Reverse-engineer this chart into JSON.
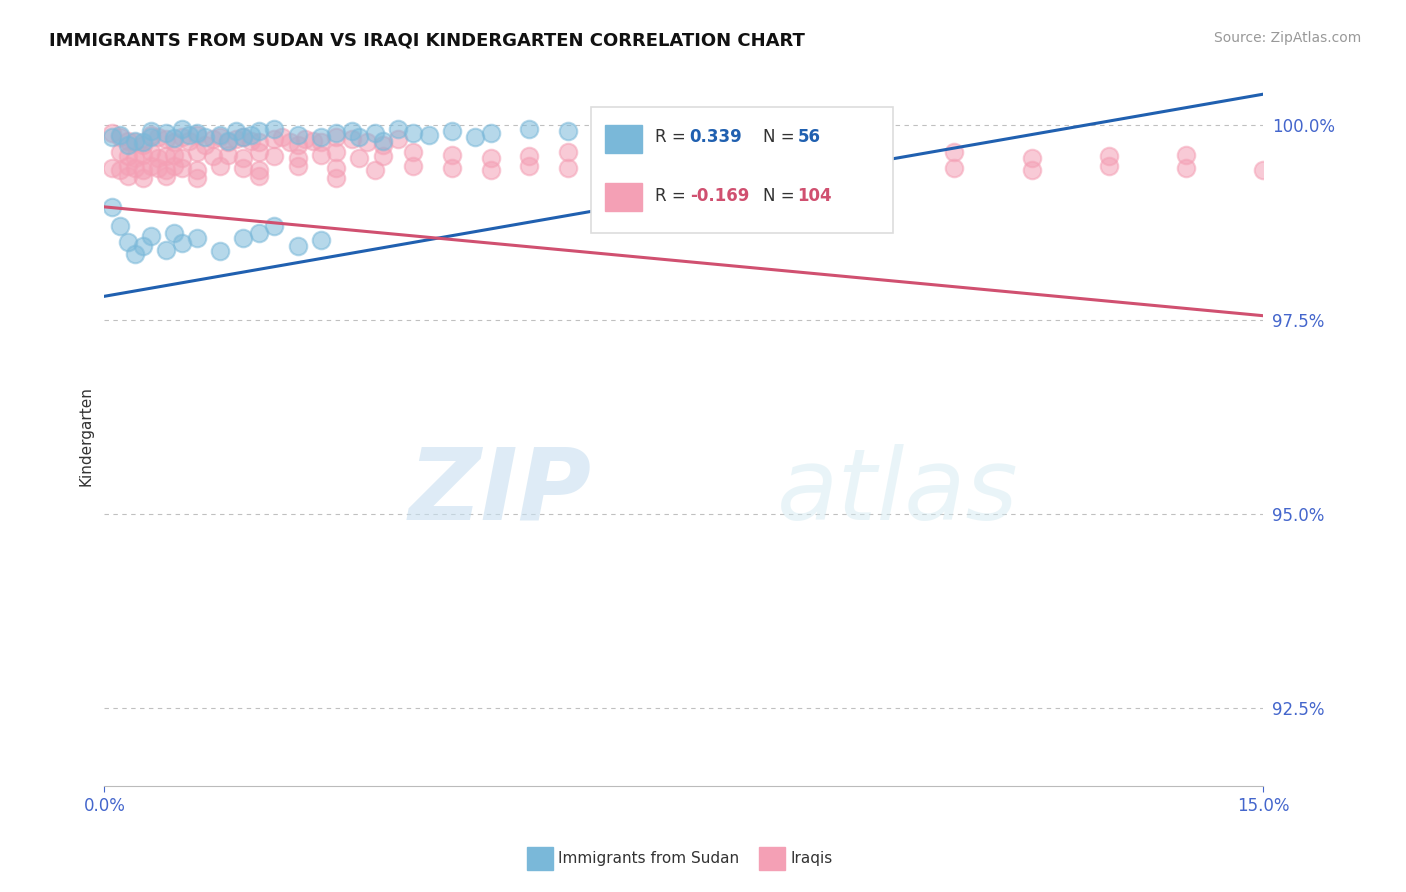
{
  "title": "IMMIGRANTS FROM SUDAN VS IRAQI KINDERGARTEN CORRELATION CHART",
  "source": "Source: ZipAtlas.com",
  "ylabel": "Kindergarten",
  "xlim": [
    0.0,
    0.15
  ],
  "ylim": [
    0.915,
    1.005
  ],
  "yticks": [
    0.925,
    0.95,
    0.975,
    1.0
  ],
  "ytick_labels": [
    "92.5%",
    "95.0%",
    "97.5%",
    "100.0%"
  ],
  "xticks": [
    0.0,
    0.15
  ],
  "xtick_labels": [
    "0.0%",
    "15.0%"
  ],
  "legend1_r": "0.339",
  "legend1_n": "56",
  "legend2_r": "-0.169",
  "legend2_n": "104",
  "color_blue": "#7ab8d9",
  "color_pink": "#f4a0b5",
  "line_color_blue": "#2060b0",
  "line_color_pink": "#d05070",
  "background_color": "#ffffff",
  "watermark_zip": "ZIP",
  "watermark_atlas": "atlas",
  "tick_color": "#4466cc",
  "blue_trend_x": [
    0.0,
    0.15
  ],
  "blue_trend_y": [
    0.978,
    1.004
  ],
  "pink_trend_x": [
    0.0,
    0.15
  ],
  "pink_trend_y": [
    0.9895,
    0.9755
  ],
  "sudan_points_x": [
    0.001,
    0.002,
    0.003,
    0.004,
    0.005,
    0.006,
    0.006,
    0.008,
    0.009,
    0.01,
    0.011,
    0.012,
    0.013,
    0.015,
    0.016,
    0.017,
    0.018,
    0.019,
    0.02,
    0.022,
    0.025,
    0.028,
    0.03,
    0.032,
    0.033,
    0.035,
    0.036,
    0.038,
    0.04,
    0.042,
    0.045,
    0.048,
    0.05,
    0.055,
    0.06,
    0.065,
    0.07,
    0.08,
    0.09,
    0.1,
    0.001,
    0.002,
    0.003,
    0.004,
    0.005,
    0.006,
    0.008,
    0.009,
    0.01,
    0.012,
    0.015,
    0.018,
    0.02,
    0.022,
    0.025,
    0.028
  ],
  "sudan_points_y": [
    0.9985,
    0.9988,
    0.9975,
    0.998,
    0.9978,
    0.9992,
    0.9985,
    0.999,
    0.9983,
    0.9995,
    0.9988,
    0.999,
    0.9985,
    0.9988,
    0.998,
    0.9993,
    0.9985,
    0.9988,
    0.9992,
    0.9995,
    0.9988,
    0.9985,
    0.999,
    0.9992,
    0.9985,
    0.999,
    0.998,
    0.9995,
    0.999,
    0.9988,
    0.9992,
    0.9985,
    0.999,
    0.9995,
    0.9992,
    0.9988,
    0.9985,
    0.9988,
    0.999,
    0.9992,
    0.9895,
    0.987,
    0.985,
    0.9835,
    0.9845,
    0.9858,
    0.984,
    0.9862,
    0.9848,
    0.9855,
    0.9838,
    0.9855,
    0.9862,
    0.987,
    0.9845,
    0.9852
  ],
  "iraqi_points_x": [
    0.001,
    0.002,
    0.003,
    0.004,
    0.005,
    0.006,
    0.007,
    0.008,
    0.009,
    0.01,
    0.011,
    0.012,
    0.013,
    0.014,
    0.015,
    0.016,
    0.017,
    0.018,
    0.019,
    0.02,
    0.022,
    0.023,
    0.024,
    0.025,
    0.026,
    0.027,
    0.028,
    0.03,
    0.032,
    0.034,
    0.036,
    0.038,
    0.002,
    0.003,
    0.004,
    0.005,
    0.006,
    0.007,
    0.008,
    0.009,
    0.01,
    0.012,
    0.014,
    0.016,
    0.018,
    0.02,
    0.022,
    0.025,
    0.028,
    0.03,
    0.033,
    0.036,
    0.04,
    0.045,
    0.05,
    0.055,
    0.06,
    0.065,
    0.07,
    0.075,
    0.08,
    0.09,
    0.1,
    0.11,
    0.12,
    0.13,
    0.14,
    0.001,
    0.002,
    0.003,
    0.004,
    0.005,
    0.006,
    0.007,
    0.008,
    0.009,
    0.01,
    0.012,
    0.015,
    0.018,
    0.02,
    0.025,
    0.03,
    0.035,
    0.04,
    0.045,
    0.05,
    0.055,
    0.06,
    0.065,
    0.07,
    0.08,
    0.09,
    0.1,
    0.11,
    0.12,
    0.13,
    0.14,
    0.15,
    0.003,
    0.005,
    0.008,
    0.012,
    0.02,
    0.03
  ],
  "iraqi_points_y": [
    0.999,
    0.9985,
    0.998,
    0.9978,
    0.9975,
    0.9988,
    0.9985,
    0.9982,
    0.9978,
    0.9985,
    0.998,
    0.9988,
    0.9975,
    0.9982,
    0.9985,
    0.9978,
    0.9982,
    0.9985,
    0.998,
    0.9978,
    0.9982,
    0.9985,
    0.9978,
    0.9975,
    0.9982,
    0.998,
    0.9978,
    0.9985,
    0.9982,
    0.9978,
    0.9975,
    0.9982,
    0.9965,
    0.996,
    0.9958,
    0.9962,
    0.9965,
    0.9958,
    0.996,
    0.9962,
    0.9958,
    0.9965,
    0.996,
    0.9962,
    0.9958,
    0.9965,
    0.996,
    0.9958,
    0.9962,
    0.9965,
    0.9958,
    0.996,
    0.9965,
    0.9962,
    0.9958,
    0.996,
    0.9965,
    0.9958,
    0.9962,
    0.9965,
    0.996,
    0.9958,
    0.9962,
    0.9965,
    0.9958,
    0.996,
    0.9962,
    0.9945,
    0.9942,
    0.9948,
    0.9945,
    0.9942,
    0.9948,
    0.9945,
    0.9942,
    0.9948,
    0.9945,
    0.9942,
    0.9948,
    0.9945,
    0.9942,
    0.9948,
    0.9945,
    0.9942,
    0.9948,
    0.9945,
    0.9942,
    0.9948,
    0.9945,
    0.9942,
    0.9948,
    0.9945,
    0.9942,
    0.9948,
    0.9945,
    0.9942,
    0.9948,
    0.9945,
    0.9942,
    0.9935,
    0.9932,
    0.9935,
    0.9932,
    0.9935,
    0.9932
  ]
}
